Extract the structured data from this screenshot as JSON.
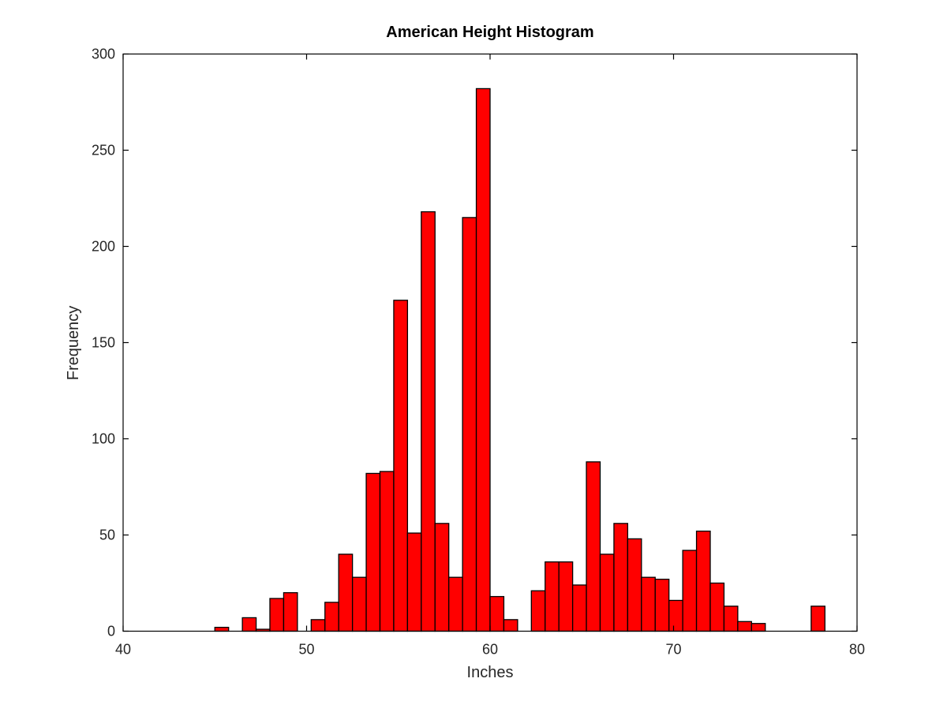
{
  "chart_data": {
    "type": "bar",
    "title": "American Height Histogram",
    "xlabel": "Inches",
    "ylabel": "Frequency",
    "xlim": [
      40,
      80
    ],
    "ylim": [
      0,
      300
    ],
    "xticks": [
      "40",
      "50",
      "60",
      "70",
      "80"
    ],
    "yticks": [
      "0",
      "50",
      "100",
      "150",
      "200",
      "250",
      "300"
    ],
    "grid": false,
    "legend": "none",
    "bar_color": "#ff0000",
    "edge_color": "#000000",
    "bin_width": 0.75,
    "bins": [
      {
        "x": 45.0,
        "count": 2
      },
      {
        "x": 46.5,
        "count": 7
      },
      {
        "x": 47.25,
        "count": 1
      },
      {
        "x": 48.0,
        "count": 17
      },
      {
        "x": 48.75,
        "count": 20
      },
      {
        "x": 50.25,
        "count": 6
      },
      {
        "x": 51.0,
        "count": 15
      },
      {
        "x": 51.75,
        "count": 40
      },
      {
        "x": 52.5,
        "count": 28
      },
      {
        "x": 53.25,
        "count": 82
      },
      {
        "x": 54.0,
        "count": 83
      },
      {
        "x": 54.75,
        "count": 172
      },
      {
        "x": 55.5,
        "count": 51
      },
      {
        "x": 56.25,
        "count": 218
      },
      {
        "x": 57.0,
        "count": 56
      },
      {
        "x": 57.75,
        "count": 28
      },
      {
        "x": 58.5,
        "count": 215
      },
      {
        "x": 59.25,
        "count": 282
      },
      {
        "x": 60.0,
        "count": 18
      },
      {
        "x": 60.75,
        "count": 6
      },
      {
        "x": 62.25,
        "count": 21
      },
      {
        "x": 63.0,
        "count": 36
      },
      {
        "x": 63.75,
        "count": 36
      },
      {
        "x": 64.5,
        "count": 24
      },
      {
        "x": 65.25,
        "count": 88
      },
      {
        "x": 66.0,
        "count": 40
      },
      {
        "x": 66.75,
        "count": 56
      },
      {
        "x": 67.5,
        "count": 48
      },
      {
        "x": 68.25,
        "count": 28
      },
      {
        "x": 69.0,
        "count": 27
      },
      {
        "x": 69.75,
        "count": 16
      },
      {
        "x": 70.5,
        "count": 42
      },
      {
        "x": 71.25,
        "count": 52
      },
      {
        "x": 72.0,
        "count": 25
      },
      {
        "x": 72.75,
        "count": 13
      },
      {
        "x": 73.5,
        "count": 5
      },
      {
        "x": 74.25,
        "count": 4
      },
      {
        "x": 77.5,
        "count": 13
      }
    ]
  }
}
